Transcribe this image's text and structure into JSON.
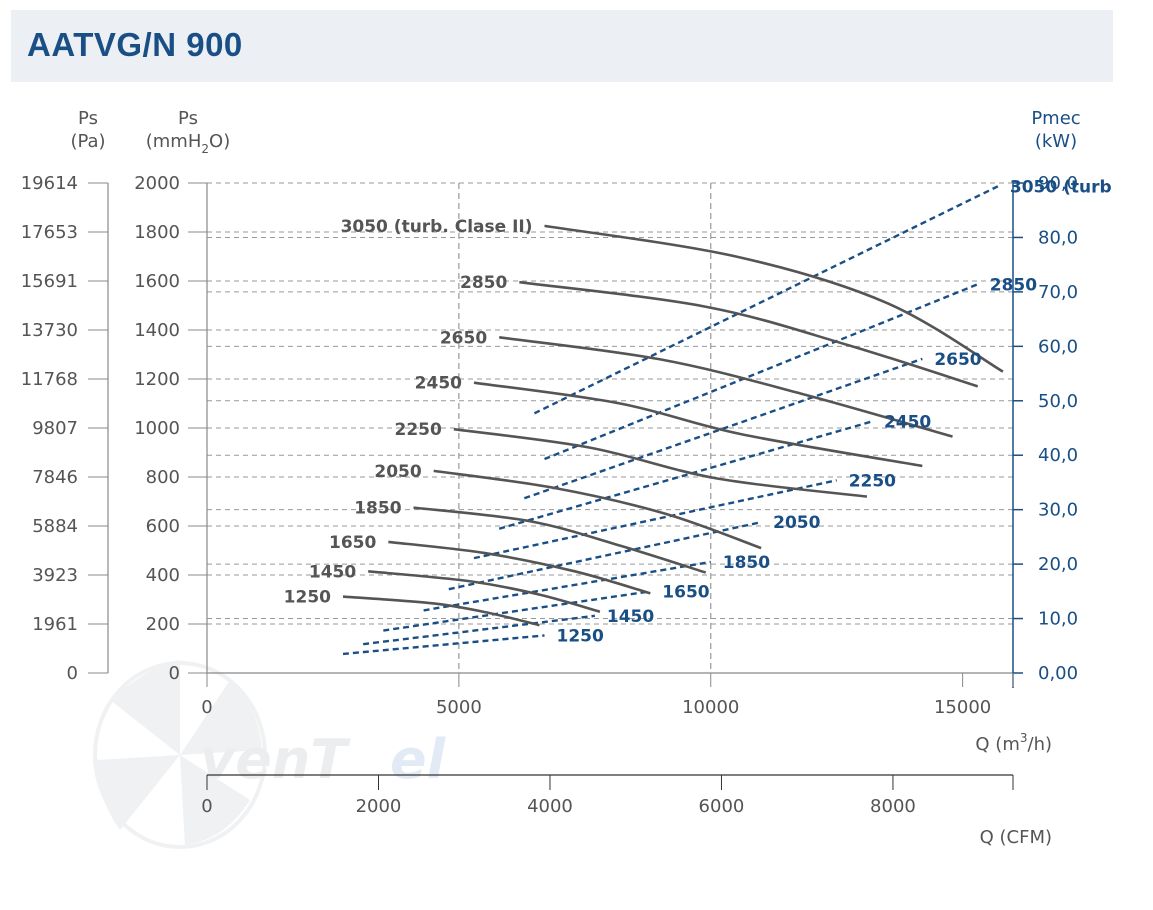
{
  "header": {
    "title": "AATVG/N 900"
  },
  "chart_data": {
    "type": "line",
    "title": "AATVG/N 900",
    "axes": {
      "y_pa": {
        "label_line1": "Ps",
        "label_line2": "(Pa)",
        "ticks": [
          "19614",
          "17653",
          "15691",
          "13730",
          "11768",
          "9807",
          "7846",
          "5884",
          "3923",
          "1961",
          "0"
        ]
      },
      "y_mmh2o": {
        "label_line1": "Ps",
        "label_line2_pre": "(mmH",
        "label_line2_sub": "2",
        "label_line2_post": "O)",
        "ticks": [
          2000,
          1800,
          1600,
          1400,
          1200,
          1000,
          800,
          600,
          400,
          200,
          0
        ],
        "range": [
          0,
          2000
        ]
      },
      "y_power": {
        "label_line1": "Pmec",
        "label_line2": "(kW)",
        "ticks": [
          "90,0",
          "80,0",
          "70,0",
          "60,0",
          "50,0",
          "40,0",
          "30,0",
          "20,0",
          "10,0",
          "0,00"
        ],
        "tick_values": [
          90,
          80,
          70,
          60,
          50,
          40,
          30,
          20,
          10,
          0
        ],
        "range": [
          0,
          90
        ]
      },
      "x_m3h": {
        "label_pre": "Q (m",
        "label_sup": "3",
        "label_post": "/h)",
        "ticks": [
          0,
          5000,
          10000,
          15000
        ],
        "range": [
          0,
          16000
        ]
      },
      "x_cfm": {
        "label": "Q (CFM)",
        "ticks": [
          0,
          2000,
          4000,
          6000,
          8000
        ],
        "range": [
          0,
          9400
        ]
      }
    },
    "pressure_series": [
      {
        "name": "1250",
        "x": [
          2700,
          4500,
          5600,
          6600
        ],
        "y": [
          312,
          284,
          245,
          195
        ]
      },
      {
        "name": "1450",
        "x": [
          3200,
          5200,
          6600,
          7800
        ],
        "y": [
          415,
          375,
          320,
          250
        ]
      },
      {
        "name": "1650",
        "x": [
          3600,
          5500,
          7300,
          8800
        ],
        "y": [
          535,
          490,
          415,
          325
        ]
      },
      {
        "name": "1850",
        "x": [
          4100,
          6400,
          8200,
          9900
        ],
        "y": [
          675,
          620,
          520,
          410
        ]
      },
      {
        "name": "2050",
        "x": [
          4500,
          6900,
          9100,
          11000
        ],
        "y": [
          825,
          755,
          650,
          510
        ]
      },
      {
        "name": "2250",
        "x": [
          4900,
          7600,
          10100,
          13100
        ],
        "y": [
          995,
          920,
          795,
          720
        ]
      },
      {
        "name": "2450",
        "x": [
          5300,
          8200,
          10600,
          14200
        ],
        "y": [
          1185,
          1100,
          975,
          845
        ]
      },
      {
        "name": "2650",
        "x": [
          5800,
          9000,
          11800,
          14800
        ],
        "y": [
          1370,
          1280,
          1140,
          965
        ]
      },
      {
        "name": "2850",
        "x": [
          6200,
          9900,
          12700,
          15300
        ],
        "y": [
          1595,
          1495,
          1340,
          1170
        ]
      },
      {
        "name": "3050 (turb. Clase II)",
        "x": [
          6700,
          10500,
          13500,
          15800
        ],
        "y": [
          1825,
          1700,
          1510,
          1230
        ]
      }
    ],
    "power_series": [
      {
        "name": "1250",
        "x": [
          2700,
          6700
        ],
        "y": [
          3.5,
          6.9
        ]
      },
      {
        "name": "1450",
        "x": [
          3100,
          7700
        ],
        "y": [
          5.3,
          10.5
        ]
      },
      {
        "name": "1650",
        "x": [
          3500,
          8800
        ],
        "y": [
          7.8,
          15.0
        ]
      },
      {
        "name": "1850",
        "x": [
          4300,
          10000
        ],
        "y": [
          11.5,
          20.4
        ]
      },
      {
        "name": "2050",
        "x": [
          4800,
          11000
        ],
        "y": [
          15.4,
          27.7
        ]
      },
      {
        "name": "2250",
        "x": [
          5300,
          12500
        ],
        "y": [
          21.1,
          35.4
        ]
      },
      {
        "name": "2450",
        "x": [
          5800,
          13200
        ],
        "y": [
          26.5,
          46.2
        ]
      },
      {
        "name": "2650",
        "x": [
          6300,
          14200
        ],
        "y": [
          32.1,
          57.7
        ]
      },
      {
        "name": "2850",
        "x": [
          6700,
          15300
        ],
        "y": [
          39.3,
          71.4
        ]
      },
      {
        "name": "3050 (turb",
        "x": [
          6500,
          15700
        ],
        "y": [
          47.7,
          89.4
        ]
      }
    ],
    "grid": true
  },
  "colors": {
    "pressure": "#555555",
    "power": "#1a4f86",
    "grid": "#999999"
  }
}
